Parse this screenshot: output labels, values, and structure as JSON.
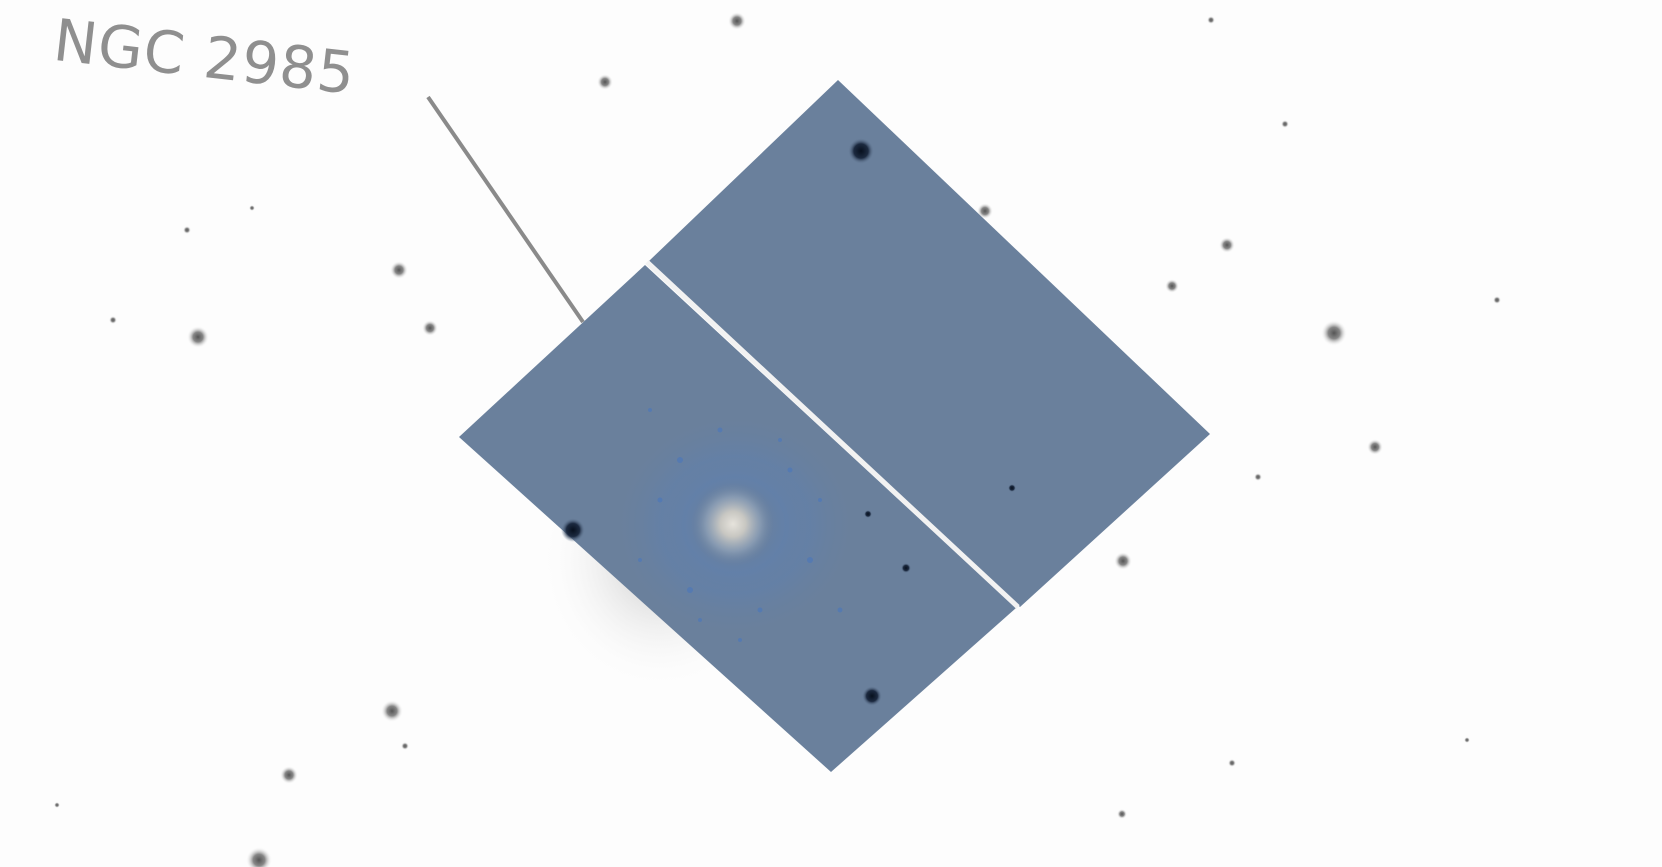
{
  "annotation": {
    "label": "NGC 2985"
  },
  "colors": {
    "background": "#fdfdfd",
    "label_text": "#8f8f8f",
    "pointer_line": "#8a8a8a",
    "field_star": "#8c8c8c",
    "mosaic_panel": "#6a809c",
    "panel_gap": "#f2f2f2"
  }
}
